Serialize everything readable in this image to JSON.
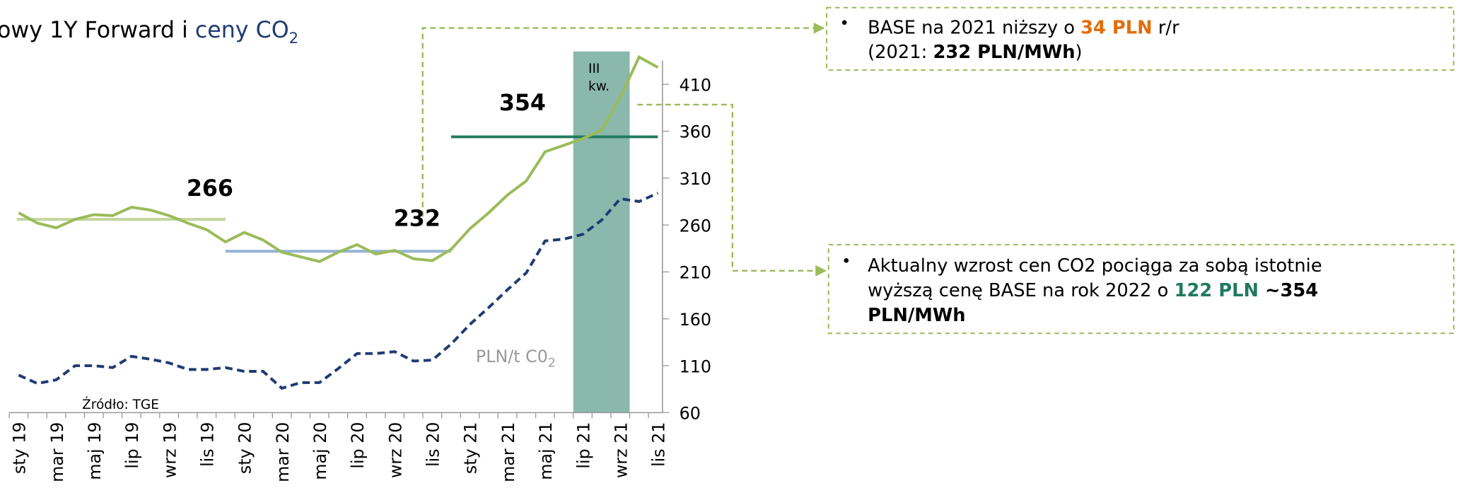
{
  "chart_data": {
    "type": "line",
    "title": {
      "part1": "owy 1Y Forward i ",
      "part2": "ceny CO",
      "sub": "2"
    },
    "categories": [
      "sty 19",
      null,
      "mar 19",
      null,
      "maj 19",
      null,
      "lip 19",
      null,
      "wrz 19",
      null,
      "lis 19",
      null,
      "sty 20",
      null,
      "mar 20",
      null,
      "maj 20",
      null,
      "lip 20",
      null,
      "wrz 20",
      null,
      "lis 20",
      null,
      "sty 21",
      null,
      "mar 21",
      null,
      "maj 21",
      null,
      "lip 21",
      null,
      "wrz 21",
      null,
      "lis 21"
    ],
    "series": [
      {
        "color": "#9bbb59",
        "dashed": false,
        "values": [
          273,
          262,
          257,
          266,
          271,
          270,
          279,
          276,
          270,
          262,
          255,
          242,
          252,
          244,
          231,
          226,
          221,
          231,
          239,
          229,
          233,
          224,
          222,
          234,
          256,
          273,
          292,
          307,
          338,
          345,
          352,
          361,
          396,
          439,
          428
        ]
      },
      {
        "color": "#1f3b73",
        "dashed": true,
        "values": [
          100,
          91,
          95,
          110,
          110,
          108,
          120,
          117,
          113,
          106,
          106,
          108,
          104,
          104,
          86,
          92,
          92,
          107,
          123,
          123,
          125,
          115,
          116,
          133,
          154,
          172,
          191,
          209,
          243,
          245,
          250,
          265,
          288,
          285,
          294
        ]
      }
    ],
    "reference_lines": [
      {
        "value": 266,
        "color": "#c3d69b"
      },
      {
        "value": 232,
        "color": "#95b3d7"
      },
      {
        "value": 354,
        "color": "#217a5f"
      }
    ],
    "ylim": [
      60,
      445
    ],
    "yticks": [
      60,
      110,
      160,
      210,
      260,
      310,
      360,
      410
    ],
    "highlight": {
      "label_lines": [
        "III",
        "kw."
      ],
      "color": "#8ab8ad"
    },
    "series_label": {
      "text": "PLN/t C0",
      "sub": "2"
    },
    "source": "Źródło: TGE",
    "callouts": [
      {
        "lines": [
          [
            {
              "text": "BASE na 2021 niższy o "
            },
            {
              "text": "34 PLN",
              "bold": true,
              "color": "#e46c0a"
            },
            {
              "text": " r/r"
            }
          ],
          [
            {
              "text": "(2021: "
            },
            {
              "text": "232 PLN/MWh",
              "bold": true
            },
            {
              "text": ")"
            }
          ]
        ]
      },
      {
        "lines": [
          [
            {
              "text": "Aktualny wzrost cen CO2 pociąga za sobą istotnie"
            }
          ],
          [
            {
              "text": "wyższą cenę BASE na rok 2022 o "
            },
            {
              "text": "122 PLN",
              "bold": true,
              "color": "#217a5f"
            },
            {
              "text": " ~354",
              "bold": true
            }
          ],
          [
            {
              "text": "PLN/MWh",
              "bold": true
            }
          ]
        ]
      }
    ]
  }
}
